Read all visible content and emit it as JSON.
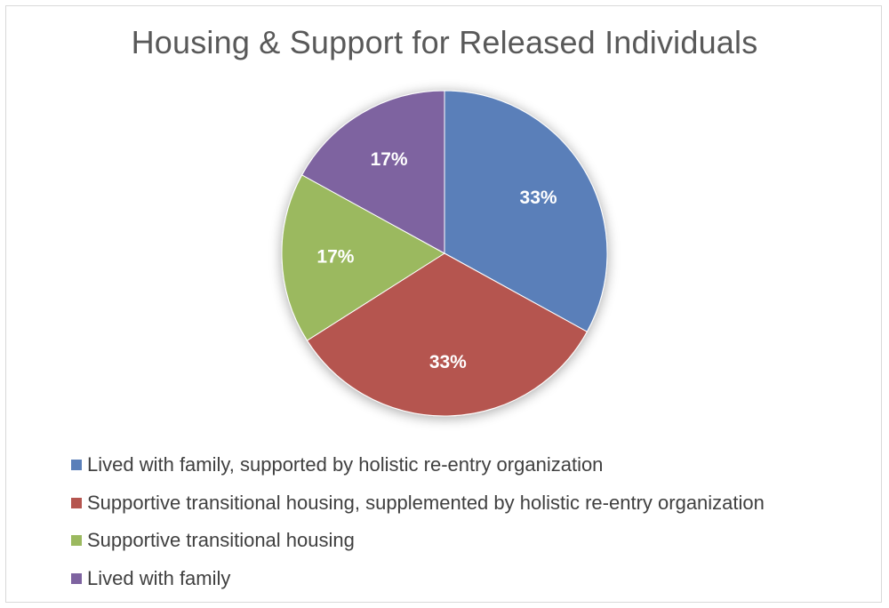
{
  "chart_data": {
    "type": "pie",
    "title": "Housing & Support for Released Individuals",
    "categories": [
      "Lived with family, supported by holistic re-entry organization",
      "Supportive transitional housing, supplemented by holistic re-entry organization",
      "Supportive transitional housing",
      "Lived with family"
    ],
    "values": [
      33,
      33,
      17,
      17
    ],
    "data_labels": [
      "33%",
      "33%",
      "17%",
      "17%"
    ],
    "colors": [
      "#5a7fb9",
      "#b5554f",
      "#9bb95f",
      "#7e63a0"
    ],
    "legend_position": "bottom"
  }
}
